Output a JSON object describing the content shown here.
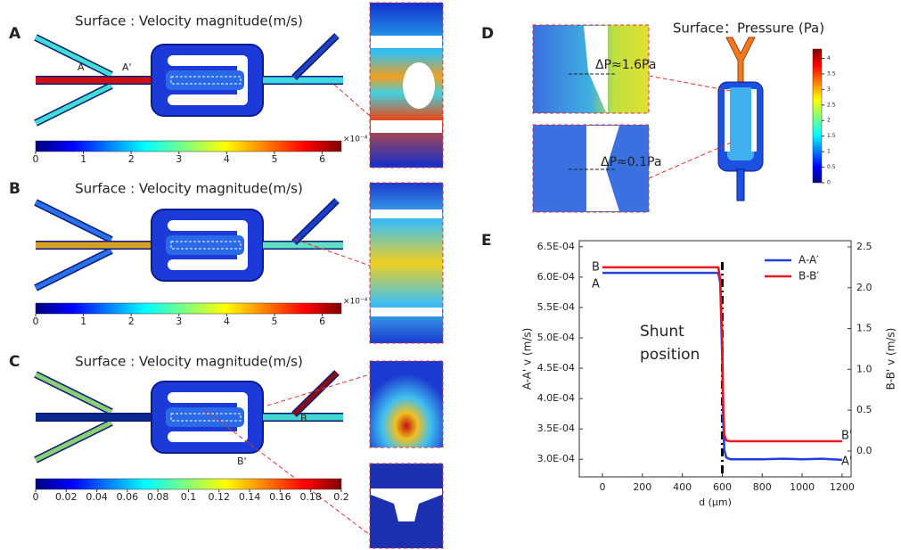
{
  "panels": {
    "A": {
      "label": "A",
      "title": "Surface : Velocity magnitude(m/s)",
      "markers": [
        "A",
        "A'"
      ],
      "colorbar": {
        "lim": [
          0,
          6.4
        ],
        "ticks": [
          0,
          1,
          2,
          3,
          4,
          5,
          6
        ],
        "exponent": "×10⁻⁴"
      }
    },
    "B": {
      "label": "B",
      "title": "Surface : Velocity magnitude(m/s)",
      "colorbar": {
        "lim": [
          0,
          6.4
        ],
        "ticks": [
          0,
          1,
          2,
          3,
          4,
          5,
          6
        ],
        "exponent": "×10⁻⁴"
      }
    },
    "C": {
      "label": "C",
      "title": "Surface : Velocity magnitude(m/s)",
      "markers": [
        "B",
        "B'"
      ],
      "colorbar": {
        "lim": [
          0,
          0.2
        ],
        "ticks": [
          0,
          0.02,
          0.04,
          0.06,
          0.08,
          0.1,
          0.12,
          0.14,
          0.16,
          0.18,
          0.2
        ]
      }
    },
    "D": {
      "label": "D",
      "title": "Surface：Pressure (Pa)",
      "annotations": [
        "ΔP≈1.6Pa",
        "ΔP≈0.1Pa"
      ],
      "colorbar": {
        "lim": [
          0,
          4.3
        ],
        "ticks": [
          0,
          0.5,
          1,
          1.5,
          2,
          2.5,
          3,
          3.5,
          4
        ]
      }
    }
  },
  "chart_data": {
    "type": "line",
    "panel_label": "E",
    "x_label": "d (μm)",
    "y_label": "A-A' v (m/s)",
    "y2_label": "B-B' v (m/s)",
    "annotation": [
      "Shunt",
      "position"
    ],
    "shunt_x": 600,
    "point_labels": [
      "B",
      "A",
      "B'",
      "A'"
    ],
    "x": [
      0,
      100,
      200,
      300,
      400,
      500,
      560,
      580,
      590,
      600,
      605,
      610,
      620,
      640,
      700,
      800,
      900,
      1000,
      1100,
      1200
    ],
    "series": [
      {
        "name": "A-A′",
        "color": "#1f3fe0",
        "values": [
          0.000607,
          0.000607,
          0.000607,
          0.000607,
          0.000607,
          0.000607,
          0.000607,
          0.000607,
          0.00059,
          0.00046,
          0.00036,
          0.000315,
          0.000303,
          0.0003,
          0.0003,
          0.0003,
          0.000301,
          0.0003,
          0.000301,
          0.000299
        ]
      },
      {
        "name": "B-B′",
        "color": "#e8141e",
        "axis": "y2",
        "values": [
          2.25,
          2.25,
          2.25,
          2.25,
          2.25,
          2.25,
          2.25,
          2.25,
          2.1,
          1.3,
          0.5,
          0.2,
          0.13,
          0.12,
          0.12,
          0.12,
          0.12,
          0.12,
          0.12,
          0.12
        ]
      }
    ],
    "xlim": [
      -116,
      1245
    ],
    "xticks": [
      0,
      200,
      400,
      600,
      800,
      1000,
      1200
    ],
    "ylim": [
      0.000271,
      0.00066
    ],
    "yticks": [
      {
        "value": 0.0003,
        "label": "3.0E-04"
      },
      {
        "value": 0.00035,
        "label": "3.5E-04"
      },
      {
        "value": 0.0004,
        "label": "4.0E-04"
      },
      {
        "value": 0.00045,
        "label": "4.5E-04"
      },
      {
        "value": 0.0005,
        "label": "5.0E-04"
      },
      {
        "value": 0.00055,
        "label": "5.5E-04"
      },
      {
        "value": 0.0006,
        "label": "6.0E-04"
      },
      {
        "value": 0.00065,
        "label": "6.5E-04"
      }
    ],
    "y2lim": [
      -0.317,
      2.576
    ],
    "y2ticks": [
      {
        "value": 0,
        "label": "0.0"
      },
      0.5,
      {
        "value": 1,
        "label": "1.0"
      },
      1.5,
      {
        "value": 2,
        "label": "2.0"
      },
      2.5
    ],
    "legend": "upper right",
    "grid": false
  }
}
